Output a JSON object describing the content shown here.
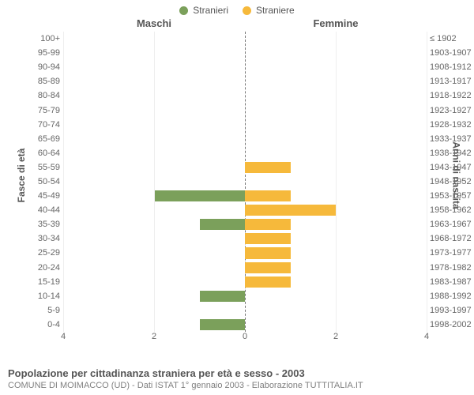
{
  "legend": {
    "male": {
      "label": "Stranieri",
      "color": "#7ba05b"
    },
    "female": {
      "label": "Straniere",
      "color": "#f6b93b"
    }
  },
  "columns": {
    "left": "Maschi",
    "right": "Femmine"
  },
  "axes": {
    "left_title": "Fasce di età",
    "right_title": "Anni di nascita",
    "x_max": 4,
    "x_ticks": [
      4,
      2,
      0,
      2,
      4
    ],
    "grid_color": "#eeeeee"
  },
  "colors": {
    "male_bar": "#7ba05b",
    "female_bar": "#f6b93b",
    "text": "#555555",
    "muted": "#808080",
    "dashed": "#777777"
  },
  "rows": [
    {
      "age": "100+",
      "yob": "≤ 1902",
      "m": 0,
      "f": 0
    },
    {
      "age": "95-99",
      "yob": "1903-1907",
      "m": 0,
      "f": 0
    },
    {
      "age": "90-94",
      "yob": "1908-1912",
      "m": 0,
      "f": 0
    },
    {
      "age": "85-89",
      "yob": "1913-1917",
      "m": 0,
      "f": 0
    },
    {
      "age": "80-84",
      "yob": "1918-1922",
      "m": 0,
      "f": 0
    },
    {
      "age": "75-79",
      "yob": "1923-1927",
      "m": 0,
      "f": 0
    },
    {
      "age": "70-74",
      "yob": "1928-1932",
      "m": 0,
      "f": 0
    },
    {
      "age": "65-69",
      "yob": "1933-1937",
      "m": 0,
      "f": 0
    },
    {
      "age": "60-64",
      "yob": "1938-1942",
      "m": 0,
      "f": 0
    },
    {
      "age": "55-59",
      "yob": "1943-1947",
      "m": 0,
      "f": 1
    },
    {
      "age": "50-54",
      "yob": "1948-1952",
      "m": 0,
      "f": 0
    },
    {
      "age": "45-49",
      "yob": "1953-1957",
      "m": 2,
      "f": 1
    },
    {
      "age": "40-44",
      "yob": "1958-1962",
      "m": 0,
      "f": 2
    },
    {
      "age": "35-39",
      "yob": "1963-1967",
      "m": 1,
      "f": 1
    },
    {
      "age": "30-34",
      "yob": "1968-1972",
      "m": 0,
      "f": 1
    },
    {
      "age": "25-29",
      "yob": "1973-1977",
      "m": 0,
      "f": 1
    },
    {
      "age": "20-24",
      "yob": "1978-1982",
      "m": 0,
      "f": 1
    },
    {
      "age": "15-19",
      "yob": "1983-1987",
      "m": 0,
      "f": 1
    },
    {
      "age": "10-14",
      "yob": "1988-1992",
      "m": 1,
      "f": 0
    },
    {
      "age": "5-9",
      "yob": "1993-1997",
      "m": 0,
      "f": 0
    },
    {
      "age": "0-4",
      "yob": "1998-2002",
      "m": 1,
      "f": 0
    }
  ],
  "caption": {
    "title": "Popolazione per cittadinanza straniera per età e sesso - 2003",
    "subtitle": "COMUNE DI MOIMACCO (UD) - Dati ISTAT 1° gennaio 2003 - Elaborazione TUTTITALIA.IT"
  }
}
